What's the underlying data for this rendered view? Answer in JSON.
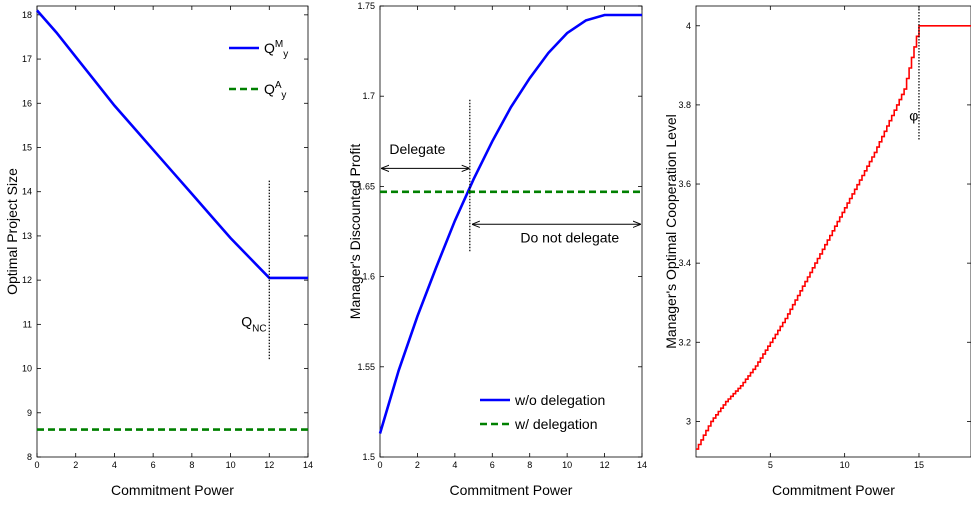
{
  "chart_data": [
    {
      "type": "line",
      "xlabel": "Commitment Power",
      "ylabel": "Optimal Project Size",
      "xlim": [
        0,
        14
      ],
      "ylim": [
        8,
        18.2
      ],
      "xticks": [
        "0",
        "2",
        "4",
        "6",
        "8",
        "10",
        "12",
        "14"
      ],
      "yticks": [
        "8",
        "9",
        "10",
        "11",
        "12",
        "13",
        "14",
        "15",
        "16",
        "17",
        "18"
      ],
      "series": [
        {
          "name_main": "Q",
          "name_sup": "M",
          "name_sub": "y",
          "color": "#0000ff",
          "style": "solid",
          "x": [
            0,
            1,
            2,
            3,
            4,
            5,
            6,
            7,
            8,
            9,
            10,
            11,
            12,
            13,
            14
          ],
          "y": [
            18.1,
            17.6,
            17.05,
            16.5,
            15.95,
            15.45,
            14.95,
            14.45,
            13.95,
            13.45,
            12.95,
            12.5,
            12.05,
            12.05,
            12.05
          ]
        },
        {
          "name_main": "Q",
          "name_sup": "A",
          "name_sub": "y",
          "color": "#008000",
          "style": "dashed",
          "x": [
            0,
            14
          ],
          "y": [
            8.62,
            8.62
          ]
        }
      ],
      "annotations": [
        {
          "main": "Q",
          "sub": "NC",
          "x": 10.55,
          "y": 10.95
        }
      ],
      "vline": {
        "x": 12,
        "y_from": 10.2,
        "y_to": 14.25
      },
      "legend_position": "top-right",
      "grid": false
    },
    {
      "type": "line",
      "xlabel": "Commitment Power",
      "ylabel": "Manager's Discounted Profit",
      "xlim": [
        0,
        14
      ],
      "ylim": [
        1.5,
        1.75
      ],
      "xticks": [
        "0",
        "2",
        "4",
        "6",
        "8",
        "10",
        "12",
        "14"
      ],
      "yticks": [
        "1.5",
        "1.55",
        "1.6",
        "1.65",
        "1.7",
        "1.75"
      ],
      "series": [
        {
          "name": "w/o delegation",
          "color": "#0000ff",
          "style": "solid",
          "x": [
            0,
            1,
            2,
            3,
            4,
            5,
            6,
            7,
            8,
            9,
            10,
            11,
            12,
            13,
            14
          ],
          "y": [
            1.513,
            1.548,
            1.578,
            1.605,
            1.631,
            1.654,
            1.675,
            1.694,
            1.71,
            1.724,
            1.735,
            1.742,
            1.745,
            1.745,
            1.745
          ]
        },
        {
          "name": "w/ delegation",
          "color": "#008000",
          "style": "dashed",
          "x": [
            0,
            14
          ],
          "y": [
            1.647,
            1.647
          ]
        }
      ],
      "annotations": [
        {
          "text": "Delegate",
          "x": 0.5,
          "y": 1.668
        },
        {
          "text": "Do not delegate",
          "x": 7.5,
          "y": 1.619
        }
      ],
      "arrows": [
        {
          "x_from": 0.1,
          "x_to": 4.75,
          "y": 1.66
        },
        {
          "x_from": 4.95,
          "x_to": 13.9,
          "y": 1.629
        }
      ],
      "vline": {
        "x": 4.8,
        "y_from": 1.614,
        "y_to": 1.698
      },
      "legend_position": "bottom-right",
      "grid": false
    },
    {
      "type": "line",
      "xlabel": "Commitment Power",
      "ylabel": "Manager's Optimal Cooperation Level",
      "xlim": [
        0,
        18.5
      ],
      "ylim": [
        2.91,
        4.05
      ],
      "xticks": [
        "5",
        "10",
        "15"
      ],
      "xtick_values": [
        5,
        10,
        15
      ],
      "yticks": [
        "3",
        "3.2",
        "3.4",
        "3.6",
        "3.8",
        "4"
      ],
      "series": [
        {
          "color": "#ff0000",
          "style": "step",
          "x": [
            0,
            1,
            2,
            3,
            4,
            5,
            6,
            7,
            8,
            9,
            10,
            11,
            12,
            13,
            14,
            15,
            16,
            17,
            18.5
          ],
          "y": [
            2.93,
            3.0,
            3.05,
            3.09,
            3.14,
            3.2,
            3.26,
            3.33,
            3.4,
            3.47,
            3.54,
            3.61,
            3.68,
            3.76,
            3.84,
            4.0,
            4.0,
            4.0,
            4.0
          ]
        }
      ],
      "annotations": [
        {
          "text": "φ",
          "x": 14.35,
          "y": 3.76
        }
      ],
      "vline": {
        "x": 15,
        "y_from": 3.71,
        "y_to": 4.05
      },
      "grid": false
    }
  ]
}
